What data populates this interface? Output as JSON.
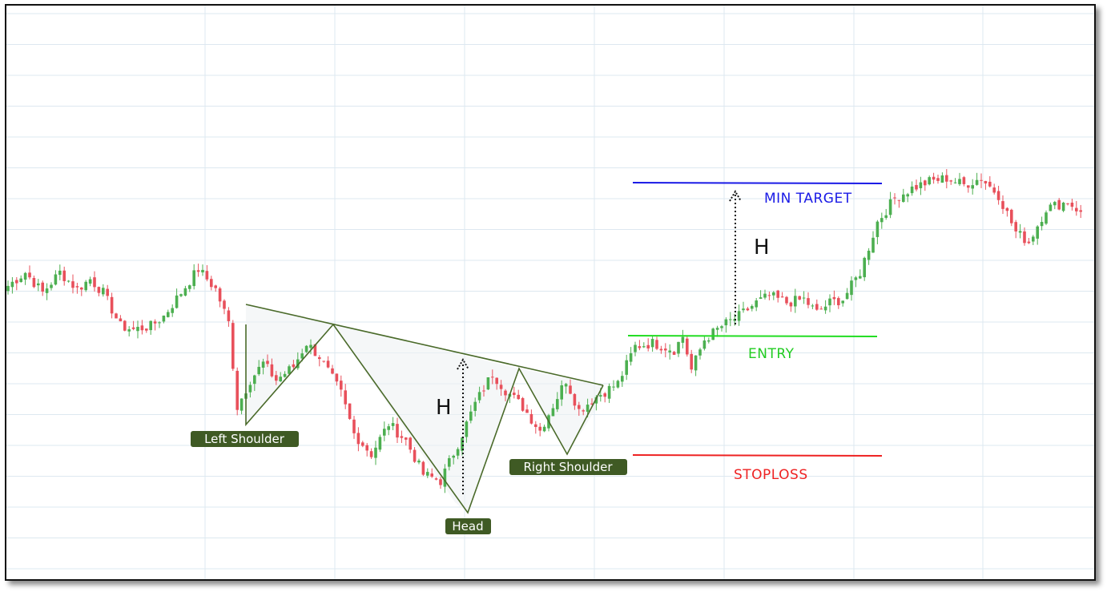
{
  "chart_data": {
    "type": "candlestick",
    "pattern": "inverse head and shoulders",
    "colors": {
      "up": "#4caf50",
      "down": "#e8505b",
      "pattern_line": "#4a6a2a",
      "min_target": "#1a1ae6",
      "entry": "#22dd22",
      "stoploss": "#ee2222",
      "grid": "#dde8f0"
    },
    "labels": {
      "left_shoulder": "Left Shoulder",
      "head": "Head",
      "right_shoulder": "Right Shoulder",
      "min_target": "MIN TARGET",
      "entry": "ENTRY",
      "stoploss": "STOPLOSS",
      "height_left": "H",
      "height_right": "H"
    },
    "anchors": [
      {
        "i": 0,
        "p": 81
      },
      {
        "i": 4,
        "p": 85
      },
      {
        "i": 8,
        "p": 79
      },
      {
        "i": 12,
        "p": 85
      },
      {
        "i": 16,
        "p": 80
      },
      {
        "i": 19,
        "p": 83
      },
      {
        "i": 22,
        "p": 79
      },
      {
        "i": 26,
        "p": 69
      },
      {
        "i": 29,
        "p": 68
      },
      {
        "i": 33,
        "p": 69
      },
      {
        "i": 36,
        "p": 72
      },
      {
        "i": 40,
        "p": 79
      },
      {
        "i": 44,
        "p": 86
      },
      {
        "i": 48,
        "p": 80
      },
      {
        "i": 51,
        "p": 70
      },
      {
        "i": 53,
        "p": 45
      },
      {
        "i": 56,
        "p": 53
      },
      {
        "i": 59,
        "p": 58
      },
      {
        "i": 62,
        "p": 53
      },
      {
        "i": 66,
        "p": 57
      },
      {
        "i": 69,
        "p": 64
      },
      {
        "i": 72,
        "p": 60
      },
      {
        "i": 77,
        "p": 49
      },
      {
        "i": 80,
        "p": 37
      },
      {
        "i": 84,
        "p": 31
      },
      {
        "i": 88,
        "p": 40
      },
      {
        "i": 92,
        "p": 35
      },
      {
        "i": 96,
        "p": 25
      },
      {
        "i": 100,
        "p": 23
      },
      {
        "i": 104,
        "p": 34
      },
      {
        "i": 108,
        "p": 46
      },
      {
        "i": 112,
        "p": 55
      },
      {
        "i": 115,
        "p": 50
      },
      {
        "i": 119,
        "p": 45
      },
      {
        "i": 123,
        "p": 38
      },
      {
        "i": 127,
        "p": 48
      },
      {
        "i": 129,
        "p": 53
      },
      {
        "i": 132,
        "p": 44
      },
      {
        "i": 136,
        "p": 48
      },
      {
        "i": 141,
        "p": 52
      },
      {
        "i": 145,
        "p": 63
      },
      {
        "i": 149,
        "p": 64
      },
      {
        "i": 154,
        "p": 62
      },
      {
        "i": 156,
        "p": 66
      },
      {
        "i": 158,
        "p": 56
      },
      {
        "i": 161,
        "p": 65
      },
      {
        "i": 165,
        "p": 69
      },
      {
        "i": 169,
        "p": 72
      },
      {
        "i": 173,
        "p": 76
      },
      {
        "i": 176,
        "p": 78
      },
      {
        "i": 180,
        "p": 76
      },
      {
        "i": 184,
        "p": 77
      },
      {
        "i": 187,
        "p": 73
      },
      {
        "i": 190,
        "p": 76
      },
      {
        "i": 193,
        "p": 77
      },
      {
        "i": 197,
        "p": 85
      },
      {
        "i": 201,
        "p": 100
      },
      {
        "i": 205,
        "p": 107
      },
      {
        "i": 209,
        "p": 110
      },
      {
        "i": 213,
        "p": 112
      },
      {
        "i": 217,
        "p": 113
      },
      {
        "i": 221,
        "p": 111
      },
      {
        "i": 225,
        "p": 113
      },
      {
        "i": 229,
        "p": 108
      },
      {
        "i": 233,
        "p": 97
      },
      {
        "i": 236,
        "p": 94
      },
      {
        "i": 240,
        "p": 104
      },
      {
        "i": 245,
        "p": 106
      },
      {
        "i": 248,
        "p": 103
      }
    ]
  }
}
